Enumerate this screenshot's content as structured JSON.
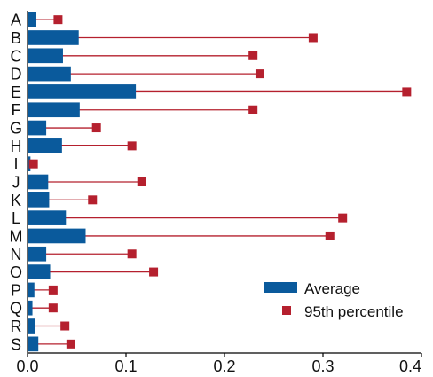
{
  "chart_data": {
    "type": "bar",
    "orientation": "horizontal",
    "categories": [
      "A",
      "B",
      "C",
      "D",
      "E",
      "F",
      "G",
      "H",
      "I",
      "J",
      "K",
      "L",
      "M",
      "N",
      "O",
      "P",
      "Q",
      "R",
      "S"
    ],
    "series": [
      {
        "name": "Average",
        "kind": "bar",
        "color": "#0a5a9c",
        "values": [
          0.009,
          0.052,
          0.036,
          0.044,
          0.11,
          0.053,
          0.019,
          0.035,
          0.003,
          0.021,
          0.022,
          0.039,
          0.059,
          0.019,
          0.023,
          0.007,
          0.005,
          0.008,
          0.011
        ]
      },
      {
        "name": "95th percentile",
        "kind": "marker",
        "color": "#b5202e",
        "values": [
          0.031,
          0.29,
          0.229,
          0.236,
          0.385,
          0.229,
          0.07,
          0.106,
          0.006,
          0.116,
          0.066,
          0.32,
          0.307,
          0.106,
          0.128,
          0.026,
          0.026,
          0.038,
          0.044
        ]
      }
    ],
    "xlim": [
      0,
      0.4
    ],
    "xticks": [
      "0.0",
      "0.1",
      "0.2",
      "0.3",
      "0.4"
    ],
    "legend_position": "bottom-right",
    "grid": false
  }
}
